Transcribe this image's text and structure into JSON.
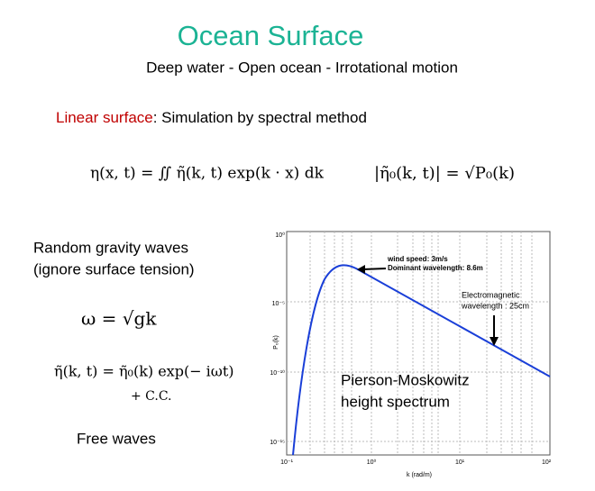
{
  "title": "Ocean Surface",
  "subtitle": "Deep water  -  Open ocean - Irrotational motion",
  "section": {
    "label": "Linear surface",
    "rest": ": Simulation by spectral method"
  },
  "equations": [
    "η(x, t) = ∬ η̃(k, t) exp(k · x) dk",
    "|η̃₀(k, t)| = √P₀(k)",
    "ω = √gk",
    "η̃(k, t) = η̃₀(k) exp(− iωt)",
    "+ C.C."
  ],
  "notes": [
    "Random gravity waves",
    "(ignore surface tension)",
    "Free waves"
  ],
  "plot": {
    "ylabel": "P₀(k)",
    "xlabel": "k (rad/m)",
    "xticks": [
      "10⁻¹",
      "10⁰",
      "10¹",
      "10²"
    ],
    "yticks": [
      "10⁰",
      "10⁻⁵",
      "10⁻¹⁰",
      "10⁻¹⁵"
    ],
    "annotations": [
      "wind speed: 3m/s",
      "Dominant wavelength: 8.6m",
      "Electromagnetic",
      "wavelength : 25cm",
      "Pierson-Moskowitz",
      "height spectrum"
    ]
  }
}
